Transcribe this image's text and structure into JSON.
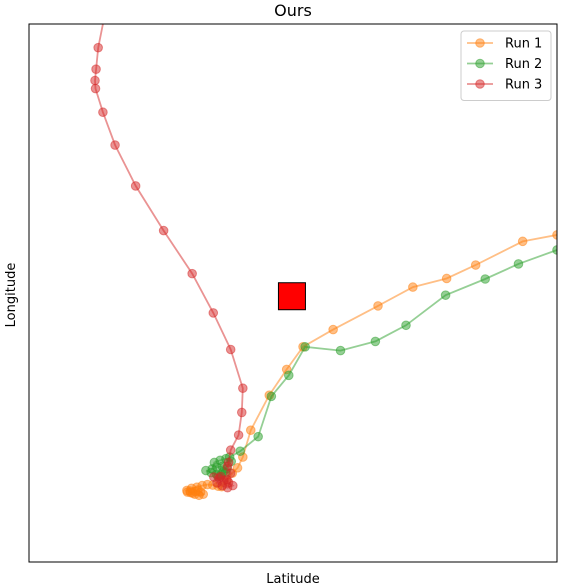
{
  "chart_data": {
    "type": "scatter",
    "title": "Ours",
    "xlabel": "Latitude",
    "ylabel": "Longitude",
    "xlim": [
      0,
      100
    ],
    "ylim": [
      0,
      100
    ],
    "grid": false,
    "legend": "top-right",
    "xticks": [],
    "yticks": [],
    "series": [
      {
        "name": "Run 1",
        "color": "#ff7f0e",
        "points": [
          [
            30.0,
            13.0
          ],
          [
            30.5,
            13.2
          ],
          [
            31.0,
            12.8
          ],
          [
            31.5,
            13.1
          ],
          [
            32.0,
            13.4
          ],
          [
            32.5,
            13.0
          ],
          [
            33.0,
            12.6
          ],
          [
            32.2,
            12.4
          ],
          [
            31.4,
            12.6
          ],
          [
            30.6,
            12.9
          ],
          [
            29.9,
            13.3
          ],
          [
            30.8,
            13.7
          ],
          [
            31.8,
            13.9
          ],
          [
            32.8,
            14.2
          ],
          [
            33.8,
            14.4
          ],
          [
            34.8,
            14.3
          ],
          [
            35.8,
            14.1
          ],
          [
            36.5,
            14.0
          ],
          [
            37.5,
            15.0
          ],
          [
            38.5,
            16.5
          ],
          [
            39.5,
            17.5
          ],
          [
            40.5,
            19.5
          ],
          [
            42.0,
            24.5
          ],
          [
            45.5,
            31.0
          ],
          [
            48.8,
            35.8
          ],
          [
            51.9,
            40.0
          ],
          [
            57.6,
            43.2
          ],
          [
            66.1,
            47.6
          ],
          [
            72.7,
            51.1
          ],
          [
            79.1,
            52.7
          ],
          [
            84.6,
            55.2
          ],
          [
            93.5,
            59.6
          ],
          [
            100.0,
            60.8
          ]
        ]
      },
      {
        "name": "Run 2",
        "color": "#2ca02c",
        "points": [
          [
            33.5,
            17.0
          ],
          [
            34.5,
            16.6
          ],
          [
            35.5,
            16.3
          ],
          [
            36.4,
            16.2
          ],
          [
            37.2,
            16.6
          ],
          [
            37.5,
            17.4
          ],
          [
            36.6,
            17.8
          ],
          [
            35.6,
            17.6
          ],
          [
            34.7,
            17.3
          ],
          [
            35.1,
            18.5
          ],
          [
            36.2,
            18.9
          ],
          [
            37.3,
            19.2
          ],
          [
            38.3,
            18.7
          ],
          [
            36.8,
            16.8
          ],
          [
            35.8,
            15.9
          ],
          [
            38.0,
            19.5
          ],
          [
            40.0,
            20.6
          ],
          [
            43.4,
            23.3
          ],
          [
            45.9,
            30.8
          ],
          [
            49.2,
            34.7
          ],
          [
            52.3,
            40.0
          ],
          [
            59.0,
            39.3
          ],
          [
            65.6,
            41.0
          ],
          [
            71.4,
            44.0
          ],
          [
            78.9,
            49.6
          ],
          [
            86.4,
            52.6
          ],
          [
            92.7,
            55.4
          ],
          [
            100.0,
            58.0
          ]
        ]
      },
      {
        "name": "Run 3",
        "color": "#d62728",
        "points": [
          [
            35.0,
            15.8
          ],
          [
            36.0,
            15.6
          ],
          [
            36.9,
            15.2
          ],
          [
            37.8,
            14.8
          ],
          [
            38.6,
            14.2
          ],
          [
            37.6,
            13.8
          ],
          [
            36.6,
            14.2
          ],
          [
            35.6,
            14.7
          ],
          [
            36.3,
            15.9
          ],
          [
            37.5,
            15.3
          ],
          [
            38.2,
            16.5
          ],
          [
            37.6,
            17.8
          ],
          [
            37.8,
            18.5
          ],
          [
            38.2,
            20.8
          ],
          [
            39.7,
            23.6
          ],
          [
            40.3,
            27.8
          ],
          [
            40.5,
            32.3
          ],
          [
            38.2,
            39.5
          ],
          [
            34.9,
            46.3
          ],
          [
            30.9,
            53.6
          ],
          [
            25.5,
            61.6
          ],
          [
            20.2,
            69.9
          ],
          [
            16.3,
            77.5
          ],
          [
            14.0,
            83.6
          ],
          [
            12.6,
            88.0
          ],
          [
            12.5,
            89.5
          ],
          [
            12.7,
            91.6
          ],
          [
            13.1,
            95.6
          ],
          [
            14.2,
            101.0
          ]
        ]
      }
    ],
    "annotations": [
      {
        "shape": "square",
        "label": "",
        "x": 49.8,
        "y": 49.4,
        "color": "#ff0000"
      }
    ]
  }
}
